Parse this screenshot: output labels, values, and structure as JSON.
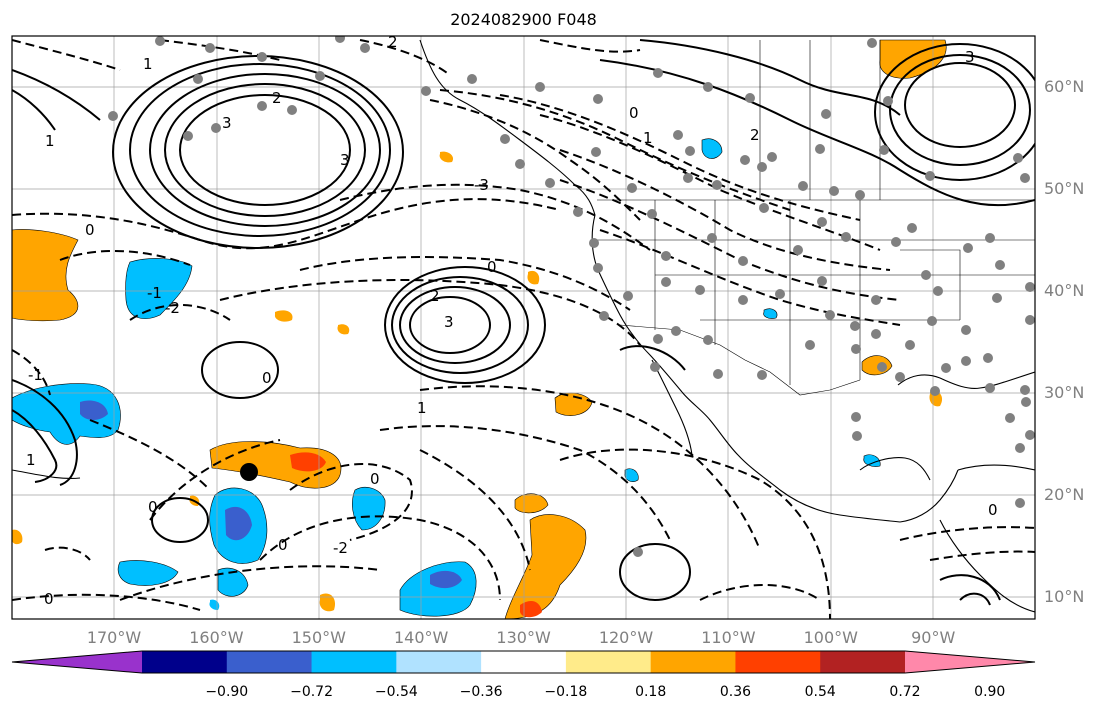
{
  "title": "2024082900 F048",
  "lat_labels": [
    {
      "text": "60°N",
      "lat": 60
    },
    {
      "text": "50°N",
      "lat": 50
    },
    {
      "text": "40°N",
      "lat": 40
    },
    {
      "text": "30°N",
      "lat": 30
    },
    {
      "text": "20°N",
      "lat": 20
    },
    {
      "text": "10°N",
      "lat": 10
    }
  ],
  "lon_labels": [
    {
      "text": "170°W",
      "lon": -170
    },
    {
      "text": "160°W",
      "lon": -160
    },
    {
      "text": "150°W",
      "lon": -150
    },
    {
      "text": "140°W",
      "lon": -140
    },
    {
      "text": "130°W",
      "lon": -130
    },
    {
      "text": "120°W",
      "lon": -120
    },
    {
      "text": "110°W",
      "lon": -110
    },
    {
      "text": "100°W",
      "lon": -100
    },
    {
      "text": "90°W",
      "lon": -90
    }
  ],
  "colorbar": {
    "colors": [
      "#9932cc",
      "#00008b",
      "#3a5fcd",
      "#00bfff",
      "#b0e2ff",
      "#ffffff",
      "#ffeb8a",
      "#ffa500",
      "#ff4000",
      "#b22222",
      "#ff88aa"
    ],
    "ticks": [
      "−0.90",
      "−0.72",
      "−0.54",
      "−0.36",
      "−0.18",
      "0.18",
      "0.36",
      "0.54",
      "0.72",
      "0.90"
    ]
  },
  "contour_labels": [
    "1",
    "2",
    "3",
    "3",
    "2",
    "1",
    "0",
    "1",
    "2",
    "3",
    "-3",
    "0",
    "-1",
    "-2",
    "2",
    "3",
    "0",
    "1",
    "0",
    "-2",
    "0",
    "0",
    "1",
    "0",
    "0",
    "0",
    "-1"
  ],
  "marker": {
    "name": "storm-center",
    "lon": -157,
    "lat": 22
  }
}
